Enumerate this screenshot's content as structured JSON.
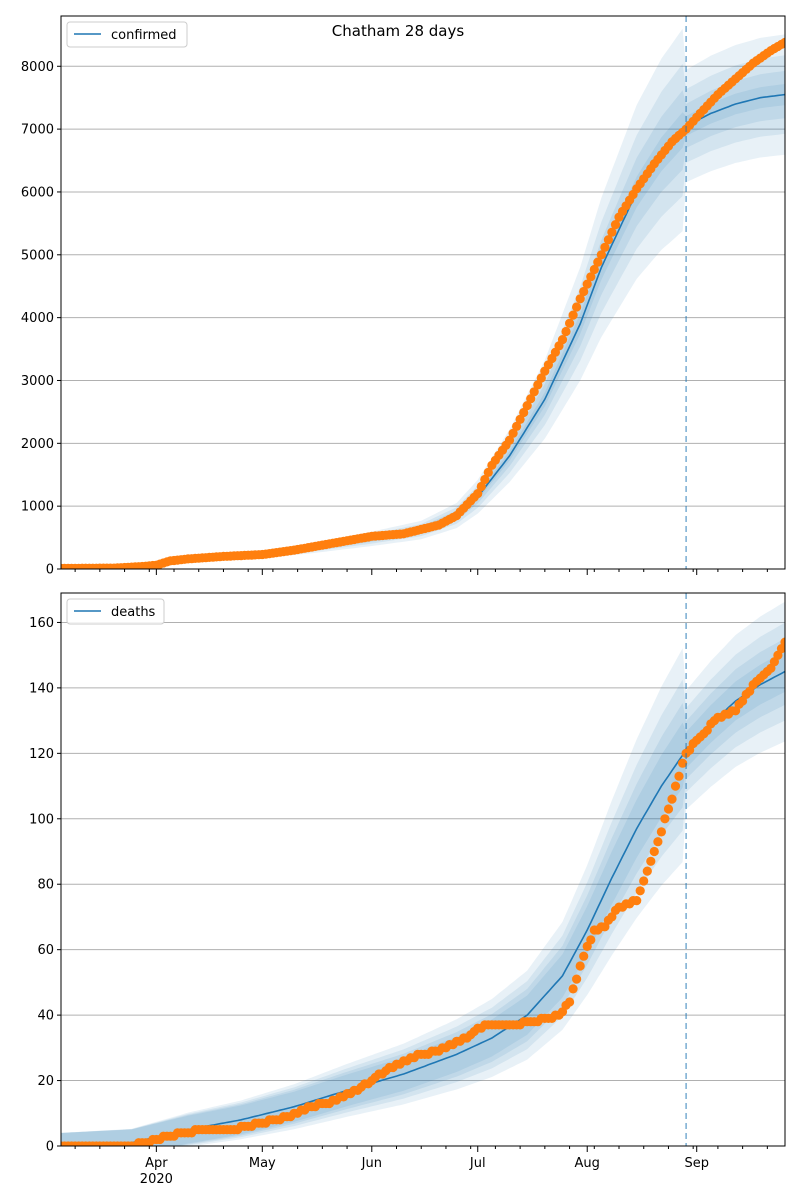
{
  "title": "Chatham 28 days",
  "colors": {
    "model": "#1f77b4",
    "observed": "#ff7f0e",
    "grid": "#b0b0b0",
    "band": "#1f77b4"
  },
  "chart_data": [
    {
      "type": "line",
      "legend": {
        "label": "confirmed",
        "placement": "top-left"
      },
      "xlim": [
        "2020-03-05",
        "2020-09-26"
      ],
      "ylim": [
        0,
        8800
      ],
      "yticks": [
        0,
        1000,
        2000,
        3000,
        4000,
        5000,
        6000,
        7000,
        8000
      ],
      "grid": "y",
      "forecast_start": "2020-08-29",
      "model_median": {
        "x": [
          "2020-03-05",
          "2020-03-20",
          "2020-04-01",
          "2020-04-15",
          "2020-05-01",
          "2020-05-15",
          "2020-06-01",
          "2020-06-15",
          "2020-06-25",
          "2020-07-01",
          "2020-07-10",
          "2020-07-20",
          "2020-07-30",
          "2020-08-05",
          "2020-08-15",
          "2020-08-22",
          "2020-08-29",
          "2020-09-05",
          "2020-09-12",
          "2020-09-19",
          "2020-09-26"
        ],
        "y": [
          0,
          0,
          100,
          170,
          230,
          330,
          480,
          620,
          850,
          1150,
          1800,
          2700,
          3900,
          4800,
          6000,
          6600,
          7050,
          7250,
          7400,
          7500,
          7550
        ]
      },
      "band_widths": [
        0.04,
        0.09,
        0.15,
        0.23
      ],
      "observed": {
        "x": [
          "2020-03-05",
          "2020-03-20",
          "2020-03-28",
          "2020-04-01",
          "2020-04-05",
          "2020-04-10",
          "2020-04-20",
          "2020-05-01",
          "2020-05-10",
          "2020-05-20",
          "2020-06-01",
          "2020-06-10",
          "2020-06-20",
          "2020-06-25",
          "2020-07-01",
          "2020-07-05",
          "2020-07-10",
          "2020-07-15",
          "2020-07-20",
          "2020-07-25",
          "2020-07-30",
          "2020-08-05",
          "2020-08-10",
          "2020-08-15",
          "2020-08-20",
          "2020-08-25",
          "2020-08-29",
          "2020-09-02",
          "2020-09-07",
          "2020-09-12",
          "2020-09-17",
          "2020-09-22",
          "2020-09-26"
        ],
        "y": [
          10,
          15,
          40,
          60,
          130,
          160,
          200,
          230,
          300,
          400,
          520,
          560,
          700,
          850,
          1200,
          1650,
          2050,
          2600,
          3150,
          3650,
          4300,
          5000,
          5600,
          6050,
          6450,
          6800,
          7000,
          7250,
          7550,
          7800,
          8050,
          8250,
          8380
        ]
      },
      "x_axis": {
        "tick_labels": []
      }
    },
    {
      "type": "line",
      "legend": {
        "label": "deaths",
        "placement": "top-left"
      },
      "xlim": [
        "2020-03-05",
        "2020-09-26"
      ],
      "ylim": [
        0,
        169
      ],
      "yticks": [
        0,
        20,
        40,
        60,
        80,
        100,
        120,
        140,
        160
      ],
      "grid": "y",
      "forecast_start": "2020-08-29",
      "model_median": {
        "x": [
          "2020-03-05",
          "2020-03-25",
          "2020-04-10",
          "2020-04-25",
          "2020-05-10",
          "2020-05-25",
          "2020-06-10",
          "2020-06-25",
          "2020-07-05",
          "2020-07-15",
          "2020-07-25",
          "2020-08-01",
          "2020-08-08",
          "2020-08-15",
          "2020-08-22",
          "2020-08-29",
          "2020-09-05",
          "2020-09-12",
          "2020-09-19",
          "2020-09-26"
        ],
        "y": [
          0,
          1,
          5,
          8,
          12,
          17,
          22,
          28,
          33,
          40,
          52,
          66,
          82,
          97,
          110,
          121,
          129,
          136,
          141,
          145
        ]
      },
      "band_widths": [
        0.05,
        0.1,
        0.16,
        0.24
      ],
      "observed": {
        "x": [
          "2020-03-05",
          "2020-03-25",
          "2020-04-01",
          "2020-04-08",
          "2020-04-15",
          "2020-04-22",
          "2020-05-01",
          "2020-05-08",
          "2020-05-15",
          "2020-05-22",
          "2020-05-29",
          "2020-06-05",
          "2020-06-12",
          "2020-06-19",
          "2020-06-26",
          "2020-07-03",
          "2020-07-10",
          "2020-07-17",
          "2020-07-24",
          "2020-07-27",
          "2020-07-30",
          "2020-08-03",
          "2020-08-06",
          "2020-08-10",
          "2020-08-15",
          "2020-08-20",
          "2020-08-25",
          "2020-08-29",
          "2020-09-02",
          "2020-09-07",
          "2020-09-12",
          "2020-09-17",
          "2020-09-22",
          "2020-09-26"
        ],
        "y": [
          0,
          0,
          2,
          4,
          5,
          5,
          7,
          9,
          12,
          14,
          18,
          23,
          27,
          29,
          32,
          37,
          37,
          38,
          40,
          44,
          55,
          66,
          67,
          73,
          75,
          90,
          106,
          120,
          125,
          131,
          133,
          141,
          146,
          154
        ]
      },
      "x_axis": {
        "tick_labels": [
          {
            "date": "2020-04-01",
            "label": "Apr",
            "sublabel": "2020"
          },
          {
            "date": "2020-05-01",
            "label": "May",
            "sublabel": ""
          },
          {
            "date": "2020-06-01",
            "label": "Jun",
            "sublabel": ""
          },
          {
            "date": "2020-07-01",
            "label": "Jul",
            "sublabel": ""
          },
          {
            "date": "2020-08-01",
            "label": "Aug",
            "sublabel": ""
          },
          {
            "date": "2020-09-01",
            "label": "Sep",
            "sublabel": ""
          }
        ]
      }
    }
  ]
}
